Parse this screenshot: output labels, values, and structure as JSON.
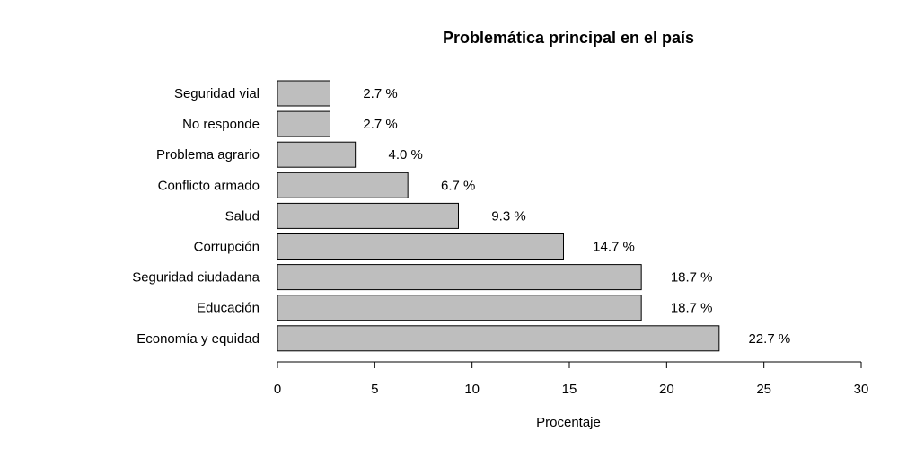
{
  "chart_data": {
    "type": "bar",
    "orientation": "horizontal",
    "title": "Problemática principal en el país",
    "xlabel": "Procentaje",
    "ylabel": "",
    "xlim": [
      0,
      30
    ],
    "xticks": [
      0,
      5,
      10,
      15,
      20,
      25,
      30
    ],
    "grid": false,
    "bar_color": "#bebebe",
    "categories": [
      "Seguridad vial",
      "No responde",
      "Problema agrario",
      "Conflicto armado",
      "Salud",
      "Corrupción",
      "Seguridad ciudadana",
      "Educación",
      "Economía y equidad"
    ],
    "values": [
      2.7,
      2.7,
      4.0,
      6.7,
      9.3,
      14.7,
      18.7,
      18.7,
      22.7
    ],
    "value_labels": [
      "2.7 %",
      "2.7 %",
      "4.0 %",
      "6.7 %",
      "9.3 %",
      "14.7 %",
      "18.7 %",
      "18.7 %",
      "22.7 %"
    ]
  }
}
